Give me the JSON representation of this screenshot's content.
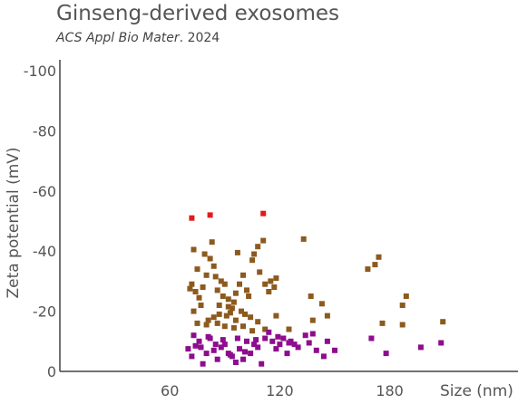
{
  "header": {
    "title": "Ginseng-derived exosomes",
    "subtitle_journal": "ACS Appl Bio Mater",
    "subtitle_year": ". 2024"
  },
  "chart_data": {
    "type": "scatter",
    "xlabel": "Size (nm)",
    "ylabel": "Zeta potential (mV)",
    "xlim": [
      0,
      250
    ],
    "ylim": [
      0,
      -100
    ],
    "y_inverted": true,
    "x_ticks": [
      60,
      120,
      180
    ],
    "y_ticks": [
      0,
      -20,
      -40,
      -60,
      -80,
      -100
    ],
    "grid": false,
    "legend": "none",
    "colors": {
      "red": "#e31a1c",
      "brown": "#8c5a1e",
      "purple": "#8e0c8e",
      "axis": "#444444",
      "text": "#555555"
    },
    "series": [
      {
        "color": "red",
        "points": [
          [
            72,
            -51
          ],
          [
            82,
            -52
          ],
          [
            111,
            -52.5
          ]
        ]
      },
      {
        "color": "brown",
        "points": [
          [
            73,
            -40.5
          ],
          [
            75,
            -34
          ],
          [
            72,
            -29
          ],
          [
            71,
            -27.5
          ],
          [
            74,
            -26.5
          ],
          [
            76,
            -24.5
          ],
          [
            78,
            -28
          ],
          [
            80,
            -32
          ],
          [
            79,
            -39
          ],
          [
            83,
            -43
          ],
          [
            82,
            -37.5
          ],
          [
            84,
            -35
          ],
          [
            85,
            -31.5
          ],
          [
            88,
            -30
          ],
          [
            90,
            -29
          ],
          [
            86,
            -27
          ],
          [
            89,
            -25
          ],
          [
            92,
            -24
          ],
          [
            95,
            -23
          ],
          [
            96,
            -26
          ],
          [
            98,
            -29
          ],
          [
            100,
            -32
          ],
          [
            102,
            -27
          ],
          [
            103,
            -25
          ],
          [
            105,
            -37
          ],
          [
            106,
            -39
          ],
          [
            108,
            -41.5
          ],
          [
            111,
            -43.5
          ],
          [
            109,
            -33
          ],
          [
            112,
            -29
          ],
          [
            115,
            -30
          ],
          [
            118,
            -31
          ],
          [
            114,
            -26.5
          ],
          [
            117,
            -28
          ],
          [
            97,
            -39.5
          ],
          [
            94,
            -21
          ],
          [
            99,
            -20
          ],
          [
            101,
            -19
          ],
          [
            104,
            -18
          ],
          [
            91,
            -18.5
          ],
          [
            93,
            -19.5
          ],
          [
            87,
            -19
          ],
          [
            84,
            -18
          ],
          [
            81,
            -17
          ],
          [
            77,
            -22
          ],
          [
            73,
            -20
          ],
          [
            75,
            -16
          ],
          [
            80,
            -15.5
          ],
          [
            86,
            -16
          ],
          [
            90,
            -15
          ],
          [
            95,
            -14.5
          ],
          [
            100,
            -15
          ],
          [
            105,
            -13.5
          ],
          [
            108,
            -16.5
          ],
          [
            112,
            -14
          ],
          [
            87,
            -22
          ],
          [
            92,
            -21.5
          ],
          [
            96,
            -17
          ],
          [
            118,
            -18.5
          ],
          [
            125,
            -14
          ],
          [
            133,
            -44
          ],
          [
            137,
            -25
          ],
          [
            143,
            -22.5
          ],
          [
            146,
            -18.5
          ],
          [
            138,
            -17
          ],
          [
            168,
            -34
          ],
          [
            172,
            -35.5
          ],
          [
            174,
            -38
          ],
          [
            176,
            -16
          ],
          [
            187,
            -22
          ],
          [
            189,
            -25
          ],
          [
            187,
            -15.5
          ],
          [
            209,
            -16.5
          ]
        ]
      },
      {
        "color": "purple",
        "points": [
          [
            70,
            -7.5
          ],
          [
            72,
            -5
          ],
          [
            74,
            -8.5
          ],
          [
            76,
            -10
          ],
          [
            78,
            -2.5
          ],
          [
            80,
            -6
          ],
          [
            82,
            -11
          ],
          [
            84,
            -7
          ],
          [
            86,
            -4
          ],
          [
            88,
            -8
          ],
          [
            90,
            -9
          ],
          [
            92,
            -6
          ],
          [
            94,
            -5
          ],
          [
            96,
            -3
          ],
          [
            98,
            -7.5
          ],
          [
            100,
            -4
          ],
          [
            102,
            -10
          ],
          [
            104,
            -6
          ],
          [
            106,
            -9
          ],
          [
            108,
            -8
          ],
          [
            110,
            -2.5
          ],
          [
            112,
            -11
          ],
          [
            114,
            -13
          ],
          [
            116,
            -10
          ],
          [
            118,
            -7.5
          ],
          [
            120,
            -9
          ],
          [
            122,
            -11
          ],
          [
            124,
            -6
          ],
          [
            126,
            -10
          ],
          [
            128,
            -9
          ],
          [
            130,
            -8
          ],
          [
            134,
            -12
          ],
          [
            136,
            -9.5
          ],
          [
            138,
            -12.5
          ],
          [
            140,
            -7
          ],
          [
            144,
            -5
          ],
          [
            146,
            -10
          ],
          [
            150,
            -7
          ],
          [
            170,
            -11
          ],
          [
            178,
            -6
          ],
          [
            197,
            -8
          ],
          [
            208,
            -9.5
          ],
          [
            73,
            -12
          ],
          [
            77,
            -8
          ],
          [
            81,
            -11.5
          ],
          [
            85,
            -9
          ],
          [
            89,
            -10.5
          ],
          [
            93,
            -5.5
          ],
          [
            97,
            -11
          ],
          [
            101,
            -6.5
          ],
          [
            107,
            -10.5
          ],
          [
            119,
            -11.5
          ],
          [
            125,
            -9.5
          ]
        ]
      }
    ]
  }
}
